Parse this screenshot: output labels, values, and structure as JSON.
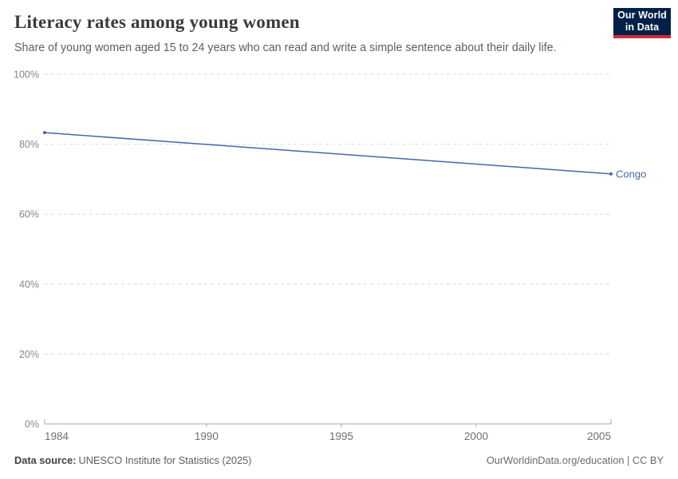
{
  "header": {
    "title": "Literacy rates among young women",
    "subtitle": "Share of young women aged 15 to 24 years who can read and write a simple sentence about their daily life.",
    "logo": {
      "line1": "Our World",
      "line2": "in Data",
      "bg_color": "#002147",
      "accent_color": "#d12d3a"
    }
  },
  "chart_data": {
    "type": "line",
    "title": "Literacy rates among young women",
    "subtitle": "Share of young women aged 15 to 24 years who can read and write a simple sentence about their daily life.",
    "xlim": [
      1984,
      2005
    ],
    "ylim": [
      0,
      100
    ],
    "grid": "horizontal-dashed",
    "legend_position": "end-of-line-label",
    "x_ticks": [
      {
        "value": 1984,
        "label": "1984"
      },
      {
        "value": 1990,
        "label": "1990"
      },
      {
        "value": 1995,
        "label": "1995"
      },
      {
        "value": 2000,
        "label": "2000"
      },
      {
        "value": 2005,
        "label": "2005"
      }
    ],
    "y_ticks": [
      {
        "value": 0,
        "label": "0%"
      },
      {
        "value": 20,
        "label": "20%"
      },
      {
        "value": 40,
        "label": "40%"
      },
      {
        "value": 60,
        "label": "60%"
      },
      {
        "value": 80,
        "label": "80%"
      },
      {
        "value": 100,
        "label": "100%"
      }
    ],
    "series": [
      {
        "name": "Congo",
        "color": "#4668a5",
        "points": [
          {
            "x": 1984,
            "y": 83.3
          },
          {
            "x": 2005,
            "y": 71.5
          }
        ]
      }
    ]
  },
  "footer": {
    "source_label": "Data source:",
    "source_text": "UNESCO Institute for Statistics (2025)",
    "link_text": "OurWorldinData.org/education | CC BY"
  }
}
